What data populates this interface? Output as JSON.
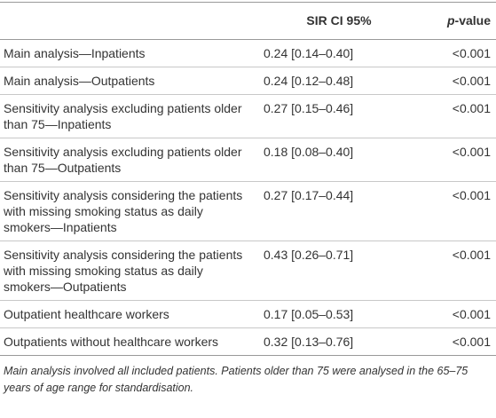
{
  "table": {
    "header": [
      "SIR CI 95%",
      {
        "italic": "p",
        "rest": "-value"
      }
    ],
    "rows": [
      [
        "Main analysis—Inpatients",
        "0.24 [0.14–0.40]",
        "<0.001"
      ],
      [
        "Main analysis—Outpatients",
        "0.24 [0.12–0.48]",
        "<0.001"
      ],
      [
        "Sensitivity analysis excluding patients older than 75—Inpatients",
        "0.27 [0.15–0.46]",
        "<0.001"
      ],
      [
        "Sensitivity analysis excluding patients older than 75—Outpatients",
        "0.18 [0.08–0.40]",
        "<0.001"
      ],
      [
        "Sensitivity analysis considering the patients with missing smoking status as daily smokers—Inpatients",
        "0.27 [0.17–0.44]",
        "<0.001"
      ],
      [
        "Sensitivity analysis considering the patients with missing smoking status as daily smokers—Outpatients",
        "0.43 [0.26–0.71]",
        "<0.001"
      ],
      [
        "Outpatient healthcare workers",
        "0.17 [0.05–0.53]",
        "<0.001"
      ],
      [
        "Outpatients without healthcare workers",
        "0.32 [0.13–0.76]",
        "<0.001"
      ]
    ],
    "footnote": "Main analysis involved all included patients. Patients older than 75 were analysed in the 65–75 years of age range for standardisation."
  }
}
